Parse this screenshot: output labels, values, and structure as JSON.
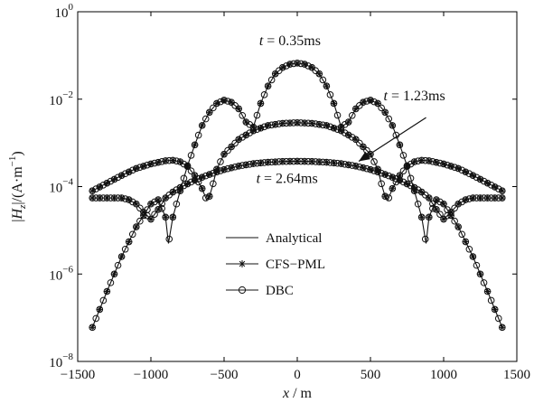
{
  "chart_data": {
    "type": "line",
    "x_scale": "linear",
    "y_scale": "log",
    "xlim": [
      -1500,
      1500
    ],
    "ylim": [
      1e-08,
      1
    ],
    "grid": false,
    "legend_position": "lower-center",
    "x_ticks": [
      {
        "value": -1500,
        "label": "−1500"
      },
      {
        "value": -1000,
        "label": "−1000"
      },
      {
        "value": -500,
        "label": "−500"
      },
      {
        "value": 0,
        "label": "0"
      },
      {
        "value": 500,
        "label": "500"
      },
      {
        "value": 1000,
        "label": "1000"
      },
      {
        "value": 1500,
        "label": "1500"
      }
    ],
    "y_ticks": [
      {
        "value": 1e-08,
        "base": "10",
        "exp": "−8"
      },
      {
        "value": 1e-06,
        "base": "10",
        "exp": "−6"
      },
      {
        "value": 0.0001,
        "base": "10",
        "exp": "−4"
      },
      {
        "value": 0.01,
        "base": "10",
        "exp": "−2"
      },
      {
        "value": 1,
        "base": "10",
        "exp": "0"
      }
    ],
    "xlabel": {
      "var": "x",
      "unit": " / m"
    },
    "ylabel": {
      "prefix": "|",
      "var": "H",
      "sub": "z",
      "suffix": "|/(A·m",
      "sup": "−1",
      "close": ")"
    },
    "legend": [
      {
        "name": "Analytical",
        "style": "line"
      },
      {
        "name": "CFS−PML",
        "style": "star"
      },
      {
        "name": "DBC",
        "style": "circle"
      }
    ],
    "annotations": [
      {
        "var": "t",
        "text": " = 0.35ms",
        "x": -50,
        "y": 0.17
      },
      {
        "var": "t",
        "text": " = 1.23ms",
        "x": 800,
        "y": 0.0095
      },
      {
        "var": "t",
        "text": " = 2.64ms",
        "x": -70,
        "y": 0.00012
      }
    ],
    "arrow": {
      "from": [
        880,
        0.0038
      ],
      "to": [
        420,
        0.00038
      ]
    },
    "series": [
      {
        "time": "0.35ms",
        "x": [
          -1400,
          -1300,
          -1200,
          -1100,
          -1000,
          -950,
          -900,
          -880,
          -850,
          -800,
          -750,
          -700,
          -650,
          -600,
          -550,
          -500,
          -450,
          -400,
          -350,
          -300,
          -250,
          -200,
          -150,
          -100,
          -50,
          0,
          50,
          100,
          150,
          200,
          250,
          300,
          350,
          400,
          450,
          500,
          550,
          600,
          650,
          700,
          750,
          800,
          850,
          880,
          900,
          950,
          1000,
          1100,
          1200,
          1300,
          1400
        ],
        "y": [
          6e-08,
          4e-07,
          2.5e-06,
          1.2e-05,
          4e-05,
          5e-05,
          2e-05,
          5e-06,
          2e-05,
          8e-05,
          0.0003,
          0.0009,
          0.0025,
          0.005,
          0.008,
          0.0095,
          0.0085,
          0.006,
          0.003,
          0.0023,
          0.008,
          0.02,
          0.038,
          0.053,
          0.063,
          0.067,
          0.063,
          0.053,
          0.038,
          0.02,
          0.008,
          0.0023,
          0.003,
          0.006,
          0.0085,
          0.0095,
          0.008,
          0.005,
          0.0025,
          0.0009,
          0.0003,
          8e-05,
          2e-05,
          5e-06,
          2e-05,
          5e-05,
          4e-05,
          1.2e-05,
          2.5e-06,
          4e-07,
          6e-08
        ]
      },
      {
        "time": "1.23ms",
        "x": [
          -1400,
          -1300,
          -1200,
          -1100,
          -1000,
          -900,
          -850,
          -800,
          -750,
          -700,
          -650,
          -620,
          -600,
          -580,
          -550,
          -500,
          -400,
          -300,
          -200,
          -100,
          0,
          100,
          200,
          300,
          400,
          500,
          550,
          580,
          600,
          620,
          650,
          700,
          750,
          800,
          850,
          900,
          1000,
          1100,
          1200,
          1300,
          1400
        ],
        "y": [
          8e-05,
          0.00012,
          0.00018,
          0.00026,
          0.00033,
          0.00039,
          0.0004,
          0.00037,
          0.00029,
          0.00018,
          9e-05,
          5e-05,
          6e-05,
          0.0001,
          0.00025,
          0.00055,
          0.0012,
          0.0019,
          0.0025,
          0.0028,
          0.0029,
          0.0028,
          0.0025,
          0.0019,
          0.0012,
          0.00055,
          0.00025,
          0.0001,
          6e-05,
          5e-05,
          9e-05,
          0.00018,
          0.00029,
          0.00037,
          0.0004,
          0.00039,
          0.00033,
          0.00026,
          0.00018,
          0.00012,
          8e-05
        ]
      },
      {
        "time": "2.64ms",
        "x": [
          -1400,
          -1300,
          -1200,
          -1150,
          -1100,
          -1050,
          -1000,
          -950,
          -900,
          -850,
          -800,
          -700,
          -600,
          -500,
          -400,
          -300,
          -200,
          -100,
          0,
          100,
          200,
          300,
          400,
          500,
          600,
          700,
          800,
          850,
          900,
          950,
          1000,
          1050,
          1100,
          1150,
          1200,
          1300,
          1400
        ],
        "y": [
          5.5e-05,
          5.5e-05,
          5.5e-05,
          5e-05,
          4e-05,
          2.6e-05,
          1.8e-05,
          3e-05,
          5.5e-05,
          7.5e-05,
          9.5e-05,
          0.00014,
          0.00019,
          0.000245,
          0.000295,
          0.000335,
          0.00036,
          0.000375,
          0.00038,
          0.000375,
          0.00036,
          0.000335,
          0.000295,
          0.000245,
          0.00019,
          0.00014,
          9.5e-05,
          7.5e-05,
          5.5e-05,
          3e-05,
          1.8e-05,
          2.6e-05,
          4e-05,
          5e-05,
          5.5e-05,
          5.5e-05,
          5.5e-05
        ]
      }
    ]
  }
}
